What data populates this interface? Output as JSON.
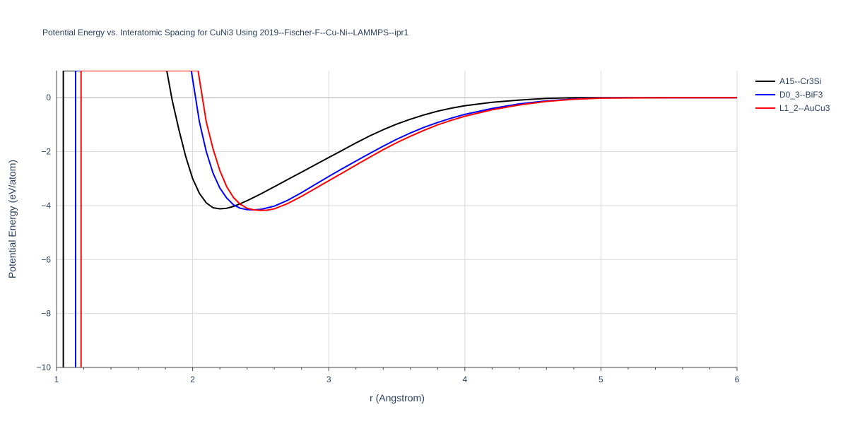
{
  "chart_data": {
    "type": "line",
    "title": "Potential Energy vs. Interatomic Spacing for CuNi3 Using 2019--Fischer-F--Cu-Ni--LAMMPS--ipr1",
    "xlabel": "r (Angstrom)",
    "ylabel": "Potential Energy (eV/atom)",
    "xlim": [
      1,
      6
    ],
    "ylim": [
      -10,
      1
    ],
    "xticks": [
      1,
      2,
      3,
      4,
      5,
      6
    ],
    "yticks": [
      0,
      -2,
      -4,
      -6,
      -8,
      -10
    ],
    "xtick_labels": [
      "1",
      "2",
      "3",
      "4",
      "5",
      "6"
    ],
    "ytick_labels": [
      "0",
      "−2",
      "−4",
      "−6",
      "−8",
      "−10"
    ],
    "grid": true,
    "legend_position": "top-right",
    "series": [
      {
        "name": "A15--Cr3Si",
        "color": "#000000",
        "x": [
          1.05,
          1.05,
          1.81,
          1.85,
          1.9,
          1.95,
          2.0,
          2.05,
          2.1,
          2.15,
          2.2,
          2.25,
          2.3,
          2.35,
          2.4,
          2.5,
          2.6,
          2.7,
          2.8,
          2.9,
          3.0,
          3.1,
          3.2,
          3.3,
          3.4,
          3.5,
          3.6,
          3.7,
          3.8,
          3.9,
          4.0,
          4.2,
          4.4,
          4.6,
          4.8,
          5.0,
          5.5,
          6.0
        ],
        "y": [
          -10.0,
          1.0,
          1.0,
          -0.1,
          -1.2,
          -2.2,
          -3.0,
          -3.55,
          -3.9,
          -4.08,
          -4.12,
          -4.1,
          -4.03,
          -3.93,
          -3.82,
          -3.57,
          -3.3,
          -3.03,
          -2.76,
          -2.49,
          -2.22,
          -1.95,
          -1.68,
          -1.42,
          -1.19,
          -0.98,
          -0.8,
          -0.64,
          -0.5,
          -0.39,
          -0.3,
          -0.17,
          -0.09,
          -0.03,
          0.0,
          0.0,
          0.0,
          0.0
        ]
      },
      {
        "name": "D0_3--BiF3",
        "color": "#0000ff",
        "x": [
          1.14,
          1.14,
          1.99,
          2.05,
          2.1,
          2.15,
          2.2,
          2.25,
          2.3,
          2.35,
          2.4,
          2.45,
          2.5,
          2.6,
          2.7,
          2.8,
          2.9,
          3.0,
          3.1,
          3.2,
          3.3,
          3.4,
          3.5,
          3.6,
          3.7,
          3.8,
          3.9,
          4.0,
          4.2,
          4.4,
          4.6,
          4.8,
          5.0,
          5.5,
          6.0
        ],
        "y": [
          -10.0,
          1.0,
          1.0,
          -0.9,
          -2.0,
          -2.8,
          -3.35,
          -3.72,
          -3.97,
          -4.1,
          -4.15,
          -4.16,
          -4.14,
          -4.02,
          -3.8,
          -3.52,
          -3.22,
          -2.92,
          -2.63,
          -2.35,
          -2.07,
          -1.8,
          -1.54,
          -1.31,
          -1.1,
          -0.92,
          -0.76,
          -0.62,
          -0.4,
          -0.23,
          -0.12,
          -0.05,
          -0.01,
          0.0,
          0.0
        ]
      },
      {
        "name": "L1_2--AuCu3",
        "color": "#ff0000",
        "x": [
          1.18,
          1.18,
          2.04,
          2.1,
          2.15,
          2.2,
          2.25,
          2.3,
          2.35,
          2.4,
          2.45,
          2.5,
          2.55,
          2.6,
          2.7,
          2.8,
          2.9,
          3.0,
          3.1,
          3.2,
          3.3,
          3.4,
          3.5,
          3.6,
          3.7,
          3.8,
          3.9,
          4.0,
          4.2,
          4.4,
          4.6,
          4.8,
          5.0,
          5.5,
          6.0
        ],
        "y": [
          -10.0,
          1.0,
          1.0,
          -0.9,
          -1.9,
          -2.7,
          -3.3,
          -3.7,
          -3.95,
          -4.1,
          -4.16,
          -4.18,
          -4.17,
          -4.12,
          -3.92,
          -3.66,
          -3.37,
          -3.08,
          -2.79,
          -2.5,
          -2.21,
          -1.93,
          -1.67,
          -1.43,
          -1.21,
          -1.01,
          -0.84,
          -0.69,
          -0.45,
          -0.27,
          -0.14,
          -0.06,
          -0.02,
          0.0,
          0.0
        ]
      }
    ]
  }
}
